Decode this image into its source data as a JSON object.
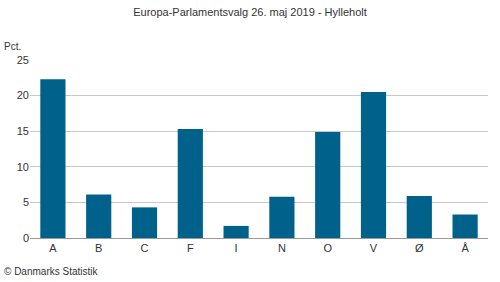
{
  "chart_data": {
    "type": "bar",
    "title": "Europa-Parlamentsvalg 26. maj 2019 - Hylleholt",
    "ylabel": "Pct.",
    "source": "© Danmarks Statistik",
    "categories": [
      "A",
      "B",
      "C",
      "F",
      "I",
      "N",
      "O",
      "V",
      "Ø",
      "Å"
    ],
    "values": [
      22.3,
      6.1,
      4.3,
      15.3,
      1.7,
      5.8,
      14.9,
      20.5,
      5.9,
      3.3
    ],
    "color": "#00628b",
    "ylim": [
      0,
      25
    ],
    "yticks": [
      0,
      5,
      10,
      15,
      20,
      25
    ],
    "grid": true
  }
}
